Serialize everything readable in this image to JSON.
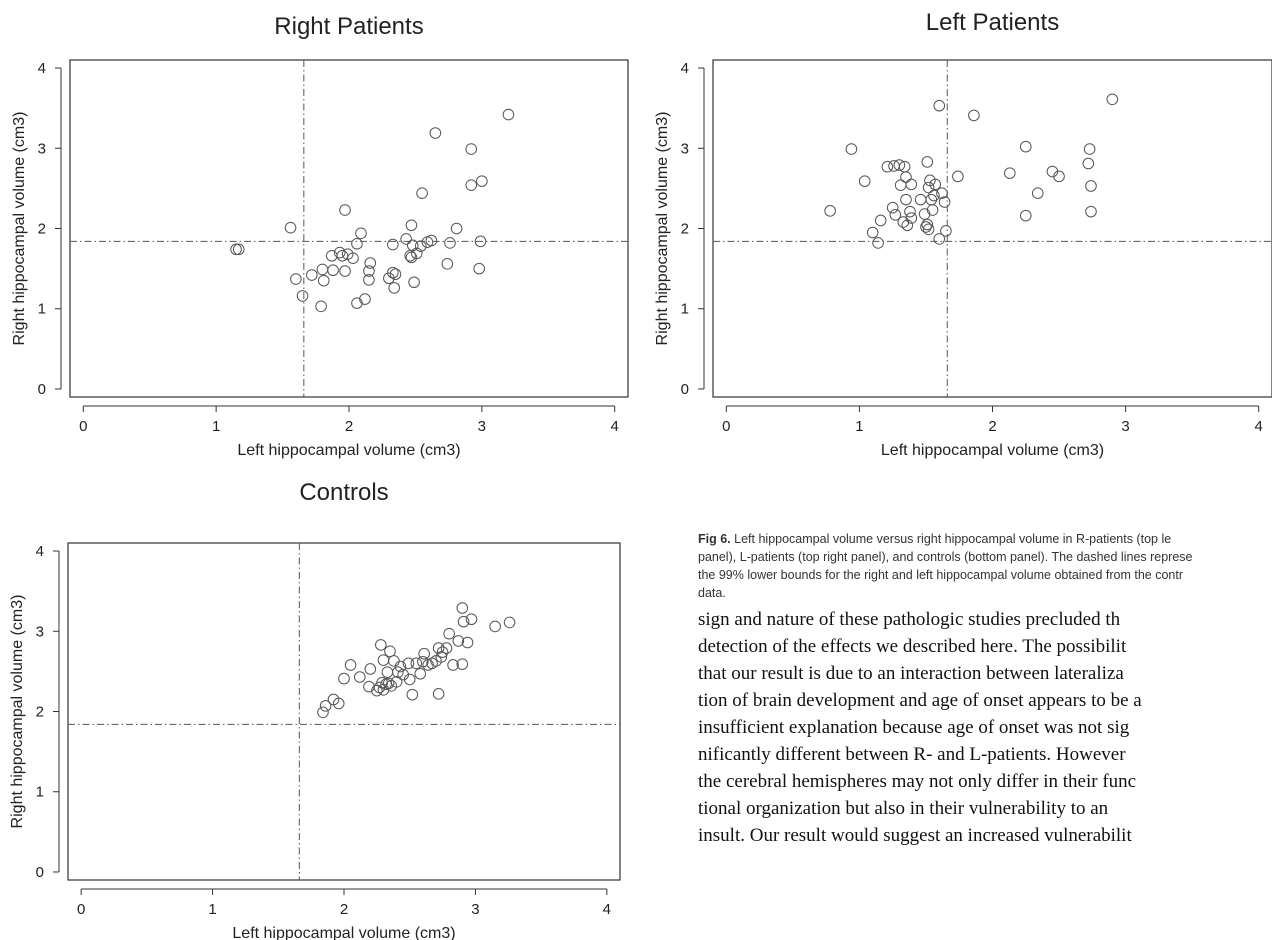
{
  "chart_data": [
    {
      "id": "right",
      "type": "scatter",
      "title": "Right Patients",
      "xlabel": "Left hippocampal volume (cm3)",
      "ylabel": "Right hippocampal volume (cm3)",
      "xlim": [
        -0.1,
        4.1
      ],
      "ylim": [
        -0.1,
        4.1
      ],
      "xticks": [
        0,
        1,
        2,
        3,
        4
      ],
      "yticks": [
        0,
        1,
        2,
        3,
        4
      ],
      "ref_x": 1.66,
      "ref_y": 1.84,
      "points": [
        [
          1.15,
          1.74
        ],
        [
          1.17,
          1.74
        ],
        [
          1.56,
          2.01
        ],
        [
          1.6,
          1.37
        ],
        [
          1.65,
          1.16
        ],
        [
          1.72,
          1.42
        ],
        [
          1.79,
          1.03
        ],
        [
          1.8,
          1.49
        ],
        [
          1.81,
          1.35
        ],
        [
          1.87,
          1.66
        ],
        [
          1.88,
          1.48
        ],
        [
          1.93,
          1.7
        ],
        [
          1.95,
          1.66
        ],
        [
          1.97,
          1.47
        ],
        [
          1.97,
          2.23
        ],
        [
          1.99,
          1.68
        ],
        [
          2.03,
          1.63
        ],
        [
          2.06,
          1.07
        ],
        [
          2.06,
          1.81
        ],
        [
          2.09,
          1.94
        ],
        [
          2.12,
          1.12
        ],
        [
          2.15,
          1.47
        ],
        [
          2.15,
          1.36
        ],
        [
          2.16,
          1.57
        ],
        [
          2.3,
          1.38
        ],
        [
          2.33,
          1.8
        ],
        [
          2.33,
          1.45
        ],
        [
          2.34,
          1.26
        ],
        [
          2.35,
          1.43
        ],
        [
          2.43,
          1.87
        ],
        [
          2.46,
          1.66
        ],
        [
          2.47,
          2.04
        ],
        [
          2.47,
          1.64
        ],
        [
          2.48,
          1.79
        ],
        [
          2.49,
          1.33
        ],
        [
          2.51,
          1.69
        ],
        [
          2.54,
          1.78
        ],
        [
          2.55,
          2.44
        ],
        [
          2.59,
          1.83
        ],
        [
          2.62,
          1.85
        ],
        [
          2.65,
          3.19
        ],
        [
          2.74,
          1.56
        ],
        [
          2.76,
          1.82
        ],
        [
          2.81,
          2.0
        ],
        [
          2.92,
          2.54
        ],
        [
          2.92,
          2.99
        ],
        [
          2.98,
          1.5
        ],
        [
          2.99,
          1.84
        ],
        [
          3.0,
          2.59
        ],
        [
          3.2,
          3.42
        ]
      ]
    },
    {
      "id": "left",
      "type": "scatter",
      "title": "Left Patients",
      "xlabel": "Left hippocampal volume (cm3)",
      "ylabel": "Right hippocampal volume (cm3)",
      "xlim": [
        -0.1,
        4.1
      ],
      "ylim": [
        -0.1,
        4.1
      ],
      "xticks": [
        0,
        1,
        2,
        3,
        4
      ],
      "yticks": [
        0,
        1,
        2,
        3,
        4
      ],
      "ref_x": 1.66,
      "ref_y": 1.84,
      "points": [
        [
          0.78,
          2.22
        ],
        [
          0.94,
          2.99
        ],
        [
          1.04,
          2.59
        ],
        [
          1.1,
          1.95
        ],
        [
          1.14,
          1.82
        ],
        [
          1.16,
          2.1
        ],
        [
          1.21,
          2.77
        ],
        [
          1.25,
          2.26
        ],
        [
          1.26,
          2.78
        ],
        [
          1.27,
          2.17
        ],
        [
          1.3,
          2.79
        ],
        [
          1.31,
          2.54
        ],
        [
          1.33,
          2.08
        ],
        [
          1.34,
          2.77
        ],
        [
          1.35,
          2.36
        ],
        [
          1.35,
          2.64
        ],
        [
          1.36,
          2.04
        ],
        [
          1.38,
          2.21
        ],
        [
          1.39,
          2.55
        ],
        [
          1.39,
          2.13
        ],
        [
          1.46,
          2.36
        ],
        [
          1.49,
          2.18
        ],
        [
          1.5,
          2.02
        ],
        [
          1.51,
          2.83
        ],
        [
          1.51,
          2.05
        ],
        [
          1.52,
          1.99
        ],
        [
          1.52,
          2.51
        ],
        [
          1.53,
          2.6
        ],
        [
          1.54,
          2.36
        ],
        [
          1.55,
          2.23
        ],
        [
          1.56,
          2.41
        ],
        [
          1.57,
          2.55
        ],
        [
          1.6,
          3.53
        ],
        [
          1.6,
          1.87
        ],
        [
          1.62,
          2.44
        ],
        [
          1.64,
          2.33
        ],
        [
          1.65,
          1.97
        ],
        [
          1.74,
          2.65
        ],
        [
          1.86,
          3.41
        ],
        [
          2.13,
          2.69
        ],
        [
          2.25,
          3.02
        ],
        [
          2.25,
          2.16
        ],
        [
          2.34,
          2.44
        ],
        [
          2.45,
          2.71
        ],
        [
          2.5,
          2.65
        ],
        [
          2.72,
          2.81
        ],
        [
          2.73,
          2.99
        ],
        [
          2.74,
          2.21
        ],
        [
          2.74,
          2.53
        ],
        [
          2.9,
          3.61
        ]
      ]
    },
    {
      "id": "controls",
      "type": "scatter",
      "title": "Controls",
      "xlabel": "Left hippocampal volume (cm3)",
      "ylabel": "Right hippocampal volume (cm3)",
      "xlim": [
        -0.1,
        4.1
      ],
      "ylim": [
        -0.1,
        4.1
      ],
      "xticks": [
        0,
        1,
        2,
        3,
        4
      ],
      "yticks": [
        0,
        1,
        2,
        3,
        4
      ],
      "ref_x": 1.66,
      "ref_y": 1.84,
      "points": [
        [
          1.84,
          1.99
        ],
        [
          1.86,
          2.07
        ],
        [
          1.92,
          2.15
        ],
        [
          1.96,
          2.1
        ],
        [
          2.0,
          2.41
        ],
        [
          2.05,
          2.58
        ],
        [
          2.12,
          2.43
        ],
        [
          2.19,
          2.31
        ],
        [
          2.2,
          2.53
        ],
        [
          2.25,
          2.26
        ],
        [
          2.27,
          2.3
        ],
        [
          2.28,
          2.83
        ],
        [
          2.29,
          2.36
        ],
        [
          2.3,
          2.64
        ],
        [
          2.3,
          2.27
        ],
        [
          2.32,
          2.34
        ],
        [
          2.33,
          2.49
        ],
        [
          2.34,
          2.35
        ],
        [
          2.35,
          2.75
        ],
        [
          2.36,
          2.32
        ],
        [
          2.38,
          2.63
        ],
        [
          2.4,
          2.37
        ],
        [
          2.41,
          2.49
        ],
        [
          2.43,
          2.56
        ],
        [
          2.45,
          2.46
        ],
        [
          2.49,
          2.6
        ],
        [
          2.5,
          2.4
        ],
        [
          2.52,
          2.21
        ],
        [
          2.55,
          2.6
        ],
        [
          2.58,
          2.47
        ],
        [
          2.6,
          2.62
        ],
        [
          2.61,
          2.72
        ],
        [
          2.64,
          2.58
        ],
        [
          2.67,
          2.6
        ],
        [
          2.7,
          2.63
        ],
        [
          2.72,
          2.22
        ],
        [
          2.72,
          2.79
        ],
        [
          2.74,
          2.68
        ],
        [
          2.75,
          2.74
        ],
        [
          2.78,
          2.79
        ],
        [
          2.8,
          2.97
        ],
        [
          2.83,
          2.58
        ],
        [
          2.87,
          2.88
        ],
        [
          2.9,
          2.59
        ],
        [
          2.9,
          3.29
        ],
        [
          2.91,
          3.12
        ],
        [
          2.94,
          2.86
        ],
        [
          2.97,
          3.15
        ],
        [
          3.15,
          3.06
        ],
        [
          3.26,
          3.11
        ]
      ]
    }
  ],
  "figure_caption": {
    "label": "Fig 6.",
    "lines": [
      "Left hippocampal volume versus right hippocampal volume in R-patients (top le",
      "panel), L-patients (top right panel), and controls (bottom panel). The dashed lines represe",
      "the 99% lower bounds for the right and left hippocampal volume obtained from the contr",
      "data."
    ]
  },
  "body_text": [
    "sign and nature of these pathologic studies precluded th",
    "detection of the effects we described here. The possibilit",
    "that our result is due to an interaction between lateraliza",
    "tion of brain development and age of onset appears to be a",
    "insufficient explanation because age of onset was not sig",
    "nificantly different between R- and L-patients. However",
    "the cerebral hemispheres may not only differ in their func",
    "tional organization but also in their vulnerability to an",
    "insult. Our result would suggest an increased vulnerabilit"
  ]
}
